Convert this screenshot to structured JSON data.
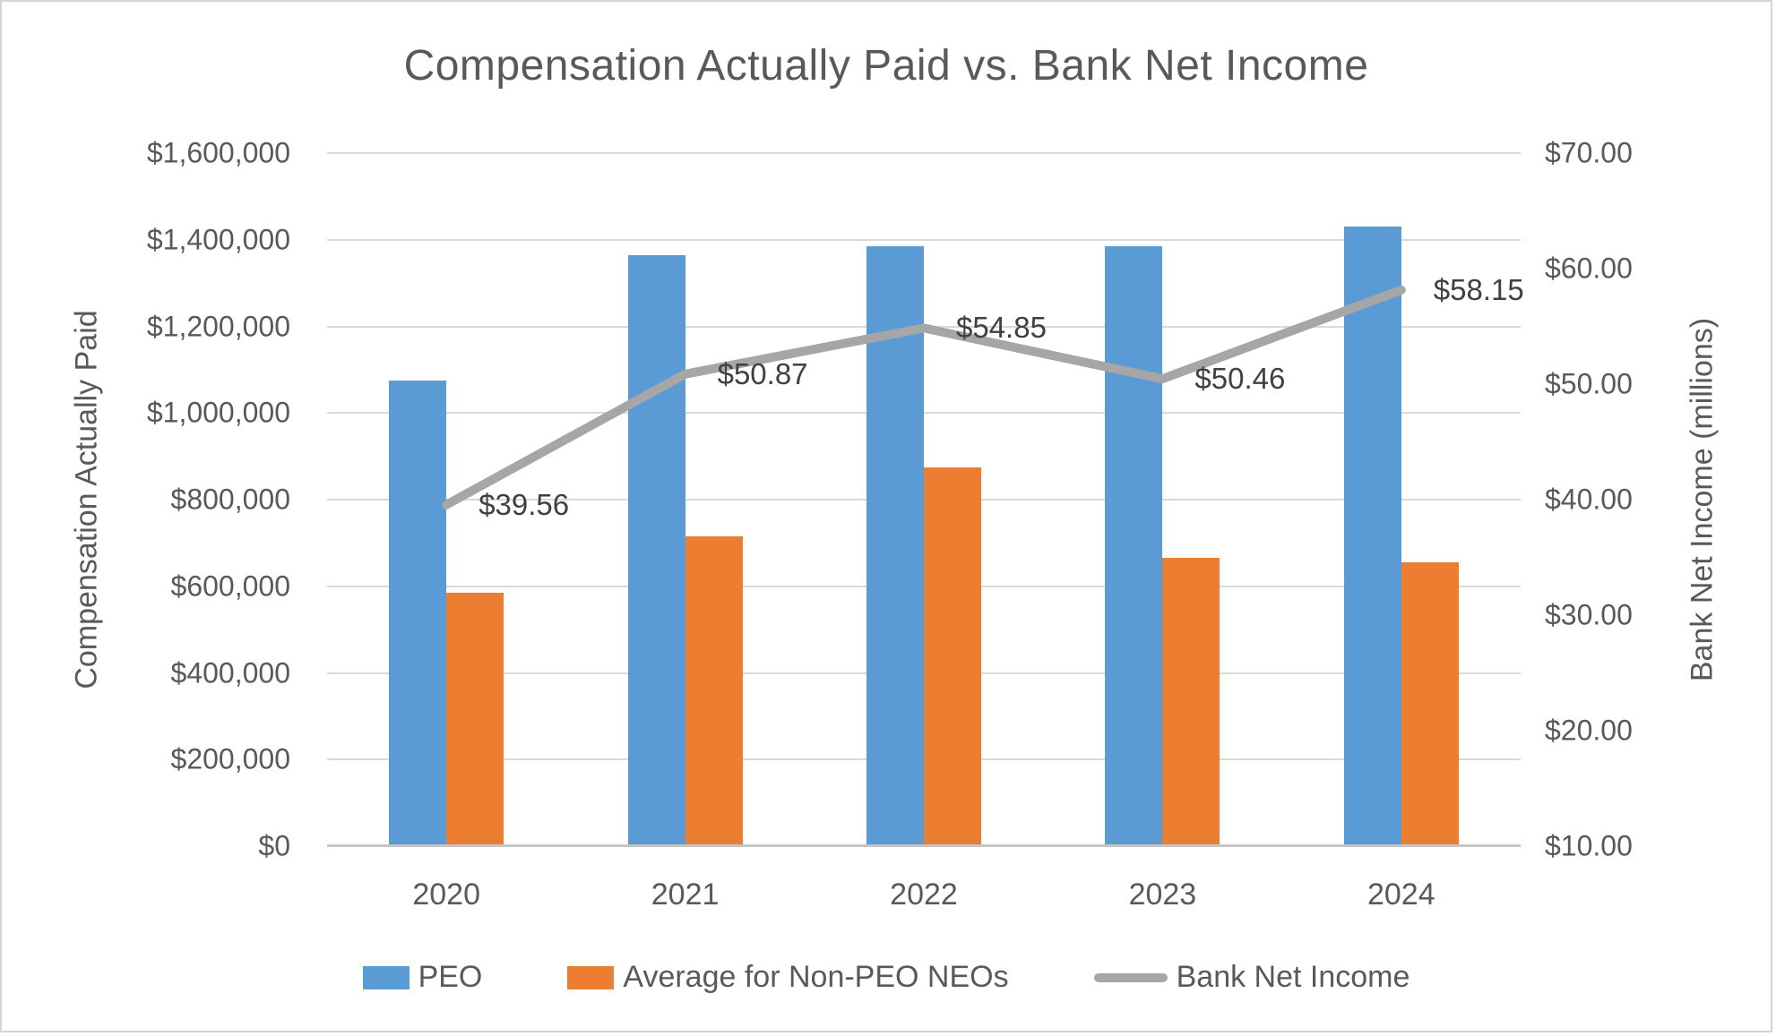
{
  "chart_data": {
    "type": "combo_bar_line",
    "title": "Compensation Actually Paid vs. Bank Net Income",
    "categories": [
      "2020",
      "2021",
      "2022",
      "2023",
      "2024"
    ],
    "series": [
      {
        "name": "PEO",
        "type": "bar",
        "axis": "left",
        "color": "#5B9BD5",
        "values": [
          1075000,
          1365000,
          1385000,
          1385000,
          1430000
        ]
      },
      {
        "name": "Average for Non-PEO NEOs",
        "type": "bar",
        "axis": "left",
        "color": "#ED7D31",
        "values": [
          585000,
          715000,
          875000,
          665000,
          655000
        ]
      },
      {
        "name": "Bank Net Income",
        "type": "line",
        "axis": "right",
        "color": "#A6A6A6",
        "values": [
          39.56,
          50.87,
          54.85,
          50.46,
          58.15
        ],
        "labels": [
          "$39.56",
          "$50.87",
          "$54.85",
          "$50.46",
          "$58.15"
        ]
      }
    ],
    "left_axis": {
      "title": "Compensation Actually Paid",
      "min": 0,
      "max": 1600000,
      "ticks": [
        "$1,600,000",
        "$1,400,000",
        "$1,200,000",
        "$1,000,000",
        "$800,000",
        "$600,000",
        "$400,000",
        "$200,000",
        "$0"
      ]
    },
    "right_axis": {
      "title": "Bank Net Income (millions)",
      "min": 10,
      "max": 70,
      "ticks": [
        "$70.00",
        "$60.00",
        "$50.00",
        "$40.00",
        "$30.00",
        "$20.00",
        "$10.00"
      ]
    },
    "legend_position": "bottom",
    "grid": true
  }
}
